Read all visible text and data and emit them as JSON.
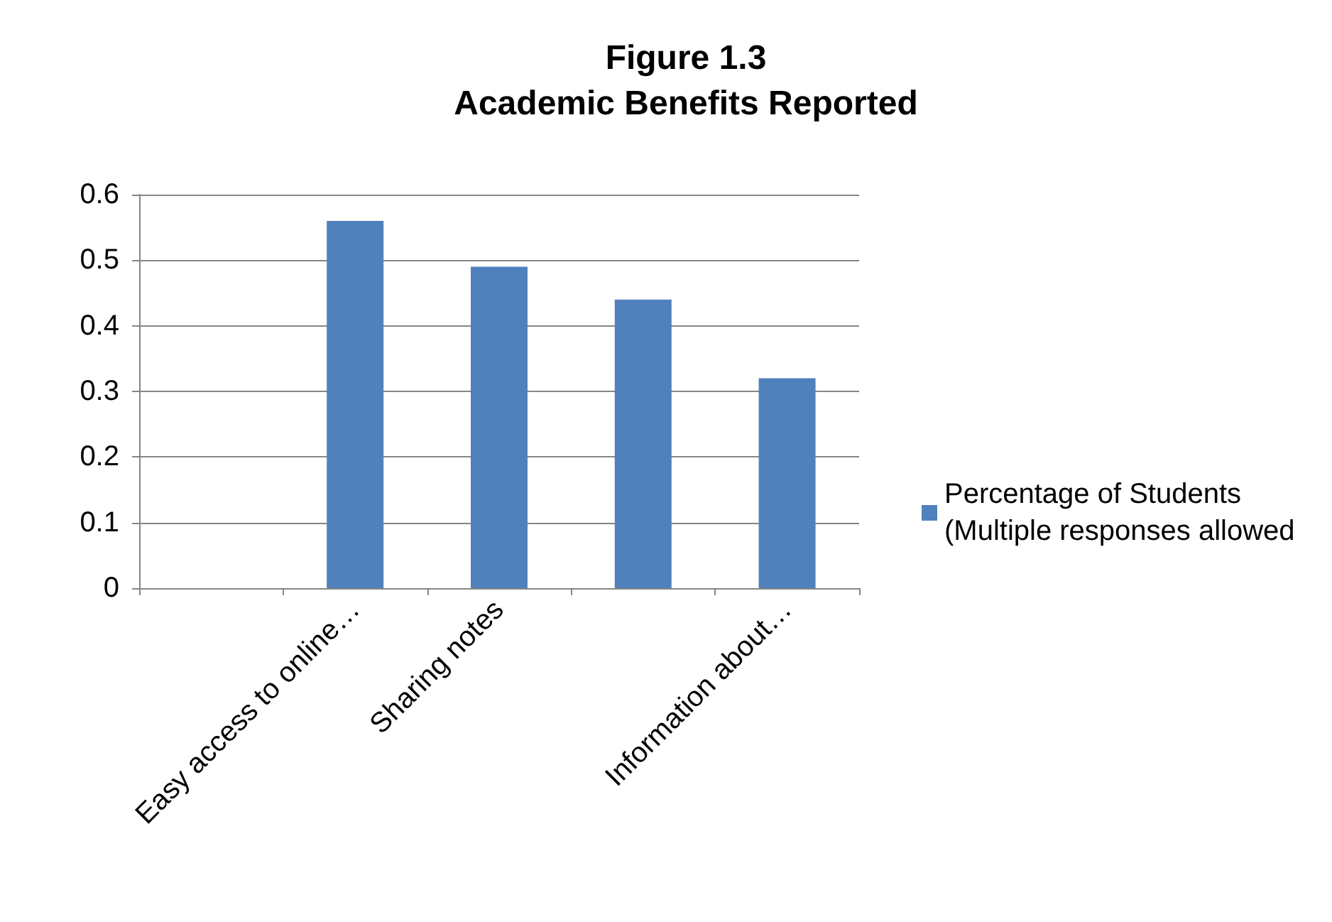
{
  "chart_data": {
    "type": "bar",
    "title": "Figure 1.3",
    "subtitle": "Academic Benefits Reported",
    "categories": [
      null,
      "Easy access to online…",
      "Sharing notes",
      null,
      "Information about…"
    ],
    "series": [
      {
        "name": "Percentage of Students (Multiple responses allowed",
        "color": "#4f81bd",
        "values": [
          null,
          0.56,
          0.49,
          0.44,
          0.32
        ]
      }
    ],
    "ylim": [
      0,
      0.6
    ],
    "yticks": [
      0,
      0.1,
      0.2,
      0.3,
      0.4,
      0.5,
      0.6
    ],
    "grid": "y",
    "legend": "right"
  }
}
